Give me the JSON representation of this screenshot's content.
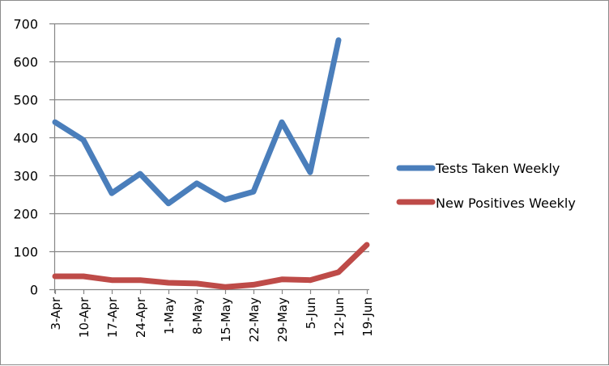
{
  "chart_data": {
    "type": "line",
    "title": "",
    "xlabel": "",
    "ylabel": "",
    "ylim": [
      0,
      700
    ],
    "yticks": [
      0,
      100,
      200,
      300,
      400,
      500,
      600,
      700
    ],
    "grid": true,
    "legend_position": "right",
    "categories": [
      "3-Apr",
      "10-Apr",
      "17-Apr",
      "24-Apr",
      "1-May",
      "8-May",
      "15-May",
      "22-May",
      "29-May",
      "5-Jun",
      "12-Jun",
      "19-Jun"
    ],
    "series": [
      {
        "name": "Tests Taken Weekly",
        "color": "#4a7ebb",
        "values": [
          440,
          393,
          253,
          304,
          226,
          279,
          236,
          257,
          440,
          308,
          656,
          null
        ]
      },
      {
        "name": "New Positives Weekly",
        "color": "#be4b48",
        "values": [
          34,
          34,
          24,
          24,
          17,
          15,
          6,
          12,
          26,
          24,
          45,
          117
        ]
      }
    ]
  },
  "legend": {
    "items": [
      {
        "label": "Tests Taken Weekly",
        "color": "#4a7ebb"
      },
      {
        "label": "New Positives Weekly",
        "color": "#be4b48"
      }
    ]
  }
}
